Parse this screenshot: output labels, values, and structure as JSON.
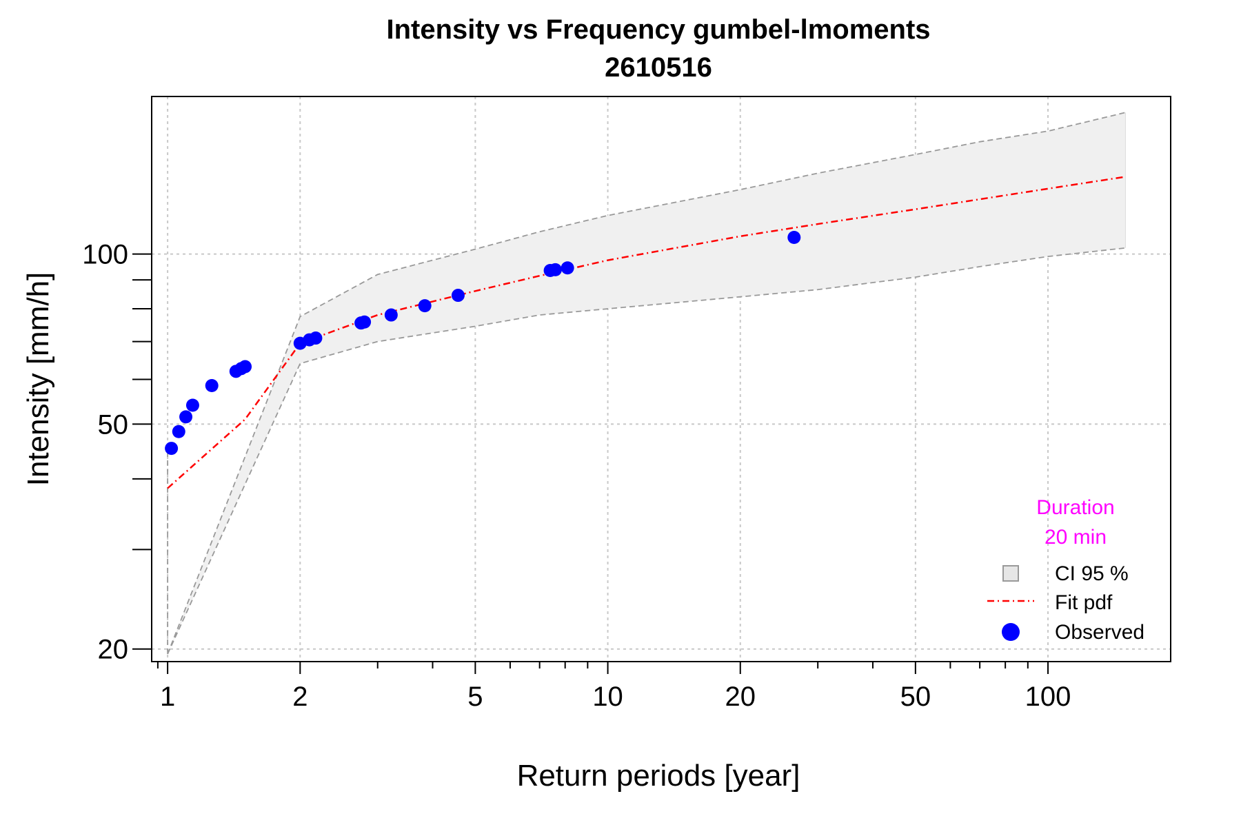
{
  "chart_data": {
    "type": "line",
    "title": "Intensity vs Frequency gumbel-lmoments",
    "subtitle": "2610516",
    "xlabel": "Return periods [year]",
    "ylabel": "Intensity [mm/h]",
    "x_scale": "log",
    "y_scale": "log",
    "xlim": [
      0.92,
      190
    ],
    "ylim": [
      19,
      190
    ],
    "x_major_ticks": [
      1,
      2,
      5,
      10,
      20,
      50,
      100
    ],
    "x_major_tick_labels": [
      "1",
      "2",
      "5",
      "10",
      "20",
      "50",
      "100"
    ],
    "x_minor_ticks": [
      0.95,
      3,
      4,
      6,
      7,
      8,
      9,
      30,
      40,
      60,
      70,
      80,
      90
    ],
    "y_major_ticks": [
      20,
      50,
      100
    ],
    "y_major_tick_labels": [
      "20",
      "50",
      "100"
    ],
    "y_minor_ticks": [
      30,
      40,
      60,
      70,
      80,
      90
    ],
    "grid": true,
    "legend_position": "bottom-right",
    "annotation": {
      "line1": "Duration",
      "line2": "20 min",
      "color": "#ff00ff"
    },
    "series": [
      {
        "name": "CI 95 %",
        "kind": "band",
        "color": "#f0f0f0",
        "line_color": "#999999",
        "x": [
          1.0,
          2.0,
          3.0,
          5.0,
          7.0,
          10.0,
          20.0,
          30.0,
          50.0,
          70.0,
          100.0,
          150.0
        ],
        "upper": [
          19.6,
          77.5,
          92.0,
          102.0,
          109.5,
          117.0,
          130.0,
          139.0,
          150.0,
          158.0,
          165.0,
          178.0
        ],
        "lower": [
          19.6,
          64.0,
          70.0,
          74.5,
          78.0,
          80.0,
          84.0,
          86.5,
          91.0,
          95.0,
          99.0,
          102.5
        ]
      },
      {
        "name": "Fit pdf",
        "kind": "line",
        "color": "#ff0000",
        "dash": "dashdot",
        "x": [
          1.0,
          1.5,
          2.0,
          3.0,
          5.0,
          7.0,
          10.0,
          20.0,
          30.0,
          50.0,
          70.0,
          100.0,
          150.0
        ],
        "y": [
          38.5,
          51.0,
          69.5,
          78.0,
          86.0,
          91.5,
          97.5,
          107.5,
          113.0,
          120.0,
          125.0,
          130.5,
          137.0
        ]
      },
      {
        "name": "Observed",
        "kind": "scatter",
        "color": "#0000ff",
        "x": [
          1.02,
          1.06,
          1.1,
          1.14,
          1.26,
          1.43,
          1.47,
          1.5,
          2.0,
          2.1,
          2.17,
          2.75,
          2.8,
          3.22,
          3.84,
          4.57,
          7.4,
          7.6,
          8.1,
          26.5
        ],
        "y": [
          45.3,
          48.5,
          51.5,
          54.0,
          58.5,
          62.0,
          62.7,
          63.2,
          69.5,
          70.5,
          71.0,
          75.5,
          75.8,
          78.0,
          81.0,
          84.5,
          93.5,
          93.8,
          94.5,
          107.0
        ]
      }
    ]
  }
}
